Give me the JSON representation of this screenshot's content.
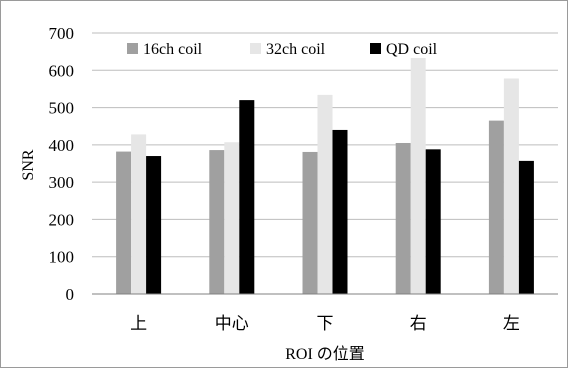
{
  "chart_data": {
    "type": "bar",
    "title": "",
    "xlabel": "ROI の位置",
    "ylabel": "SNR",
    "categories": [
      "上",
      "中心",
      "下",
      "右",
      "左"
    ],
    "ylim": [
      0,
      700
    ],
    "yticks": [
      0,
      100,
      200,
      300,
      400,
      500,
      600,
      700
    ],
    "grid": true,
    "legend_position": "top",
    "series": [
      {
        "name": "16ch coil",
        "color": "#a0a0a0",
        "values": [
          382,
          386,
          381,
          405,
          465
        ]
      },
      {
        "name": "32ch coil",
        "color": "#e6e6e6",
        "values": [
          428,
          407,
          534,
          633,
          578
        ]
      },
      {
        "name": "QD coil",
        "color": "#000000",
        "values": [
          370,
          520,
          440,
          388,
          357
        ]
      }
    ]
  }
}
